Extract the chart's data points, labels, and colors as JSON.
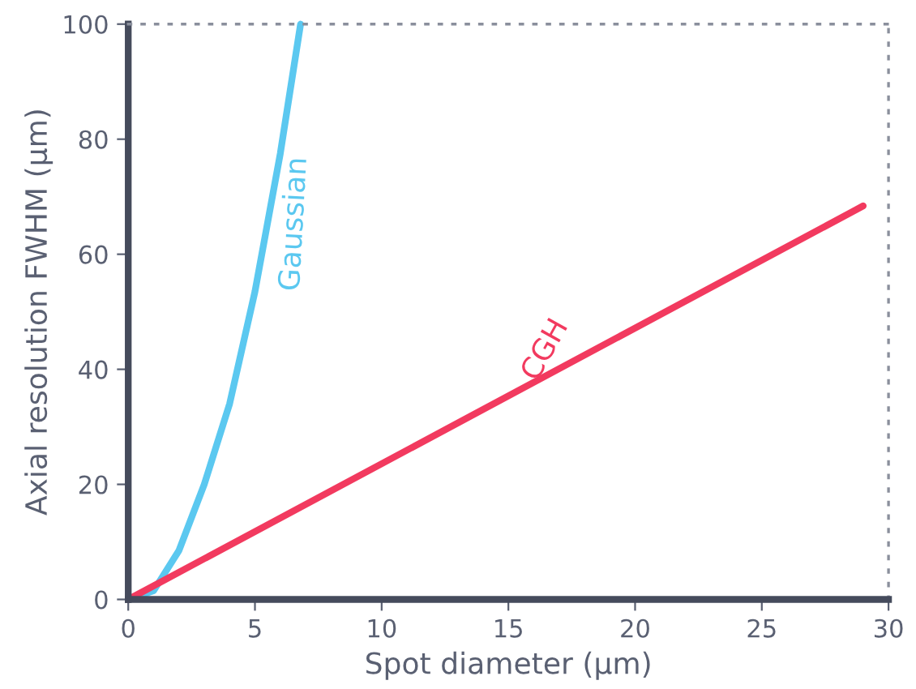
{
  "chart_data": {
    "type": "line",
    "xlabel": "Spot diameter (µm)",
    "ylabel": "Axial resolution FWHM (µm)",
    "xlim": [
      0,
      30
    ],
    "ylim": [
      0,
      100
    ],
    "xticks": [
      0,
      5,
      10,
      15,
      20,
      25,
      30
    ],
    "yticks": [
      0,
      20,
      40,
      60,
      80,
      100
    ],
    "grid": false,
    "legend": false,
    "marker": "none",
    "line_style": "solid",
    "series": [
      {
        "name": "Gaussian",
        "color": "#5bc8f0",
        "x": [
          0,
          1,
          2,
          3,
          4,
          5,
          6,
          6.8
        ],
        "values": [
          0,
          1.5,
          8.5,
          20,
          34,
          53.5,
          77.5,
          100
        ]
      },
      {
        "name": "CGH",
        "color": "#f23a5f",
        "x": [
          0,
          29
        ],
        "values": [
          0,
          68.4
        ]
      }
    ]
  }
}
